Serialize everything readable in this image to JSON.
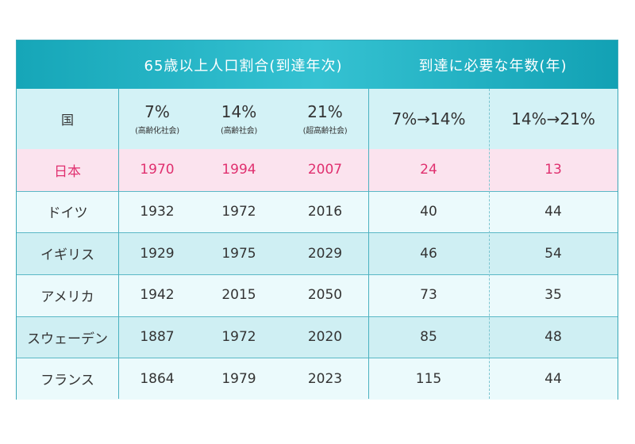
{
  "chart_data": {
    "type": "table",
    "group_headers": {
      "year_reached": "65歳以上人口割合(到達年次)",
      "years_needed": "到達に必要な年数(年)"
    },
    "columns": {
      "country": "国",
      "p7": {
        "value": "7%",
        "note": "(高齢化社会)"
      },
      "p14": {
        "value": "14%",
        "note": "(高齢社会)"
      },
      "p21": {
        "value": "21%",
        "note": "(超高齢社会)"
      },
      "d1": "7%→14%",
      "d2": "14%→21%"
    },
    "rows": [
      {
        "country": "日本",
        "y7": 1970,
        "y14": 1994,
        "y21": 2007,
        "d7_14": 24,
        "d14_21": 13
      },
      {
        "country": "ドイツ",
        "y7": 1932,
        "y14": 1972,
        "y21": 2016,
        "d7_14": 40,
        "d14_21": 44
      },
      {
        "country": "イギリス",
        "y7": 1929,
        "y14": 1975,
        "y21": 2029,
        "d7_14": 46,
        "d14_21": 54
      },
      {
        "country": "アメリカ",
        "y7": 1942,
        "y14": 2015,
        "y21": 2050,
        "d7_14": 73,
        "d14_21": 35
      },
      {
        "country": "スウェーデン",
        "y7": 1887,
        "y14": 1972,
        "y21": 2020,
        "d7_14": 85,
        "d14_21": 48
      },
      {
        "country": "フランス",
        "y7": 1864,
        "y14": 1979,
        "y21": 2023,
        "d7_14": 115,
        "d14_21": 44
      }
    ]
  },
  "colors": {
    "header_band": "#22b0c2",
    "header_row": "#d3f2f6",
    "japan_row": "#fbe3ee",
    "japan_text": "#e0306f",
    "row_alt_a": "#cfeff3",
    "row_alt_b": "#ebfafc"
  }
}
